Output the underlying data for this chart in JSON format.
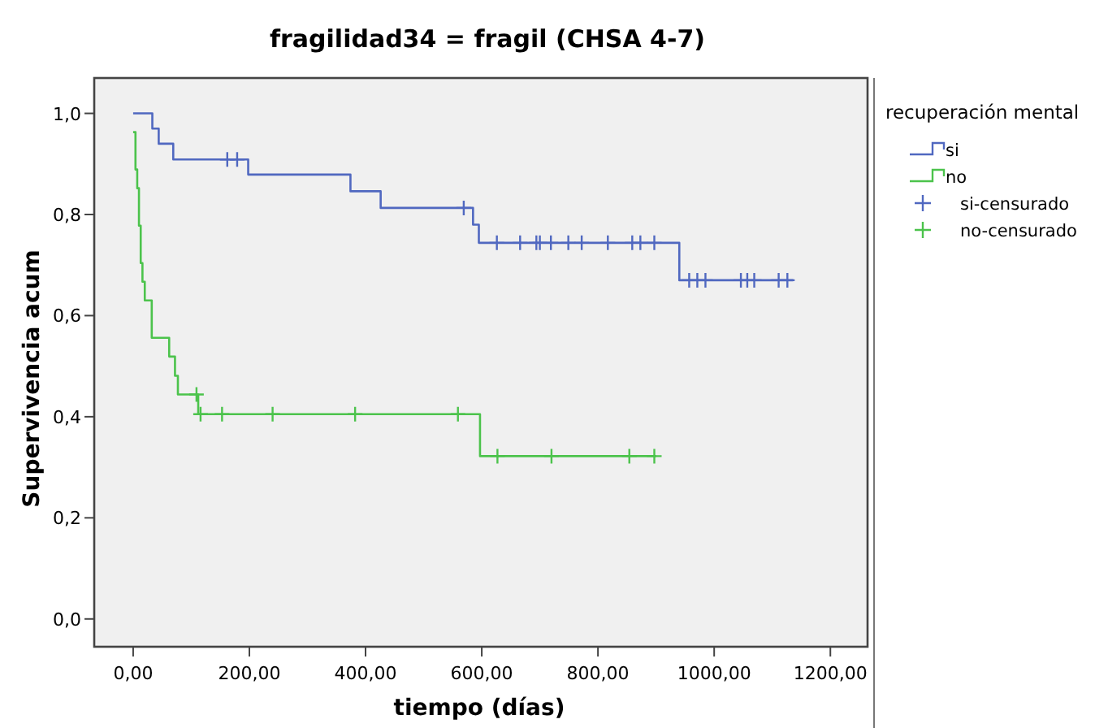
{
  "chart_data": {
    "type": "step",
    "title": "fragilidad34 = fragil (CHSA 4-7)",
    "xlabel": "tiempo (días)",
    "ylabel": "Supervivencia acum",
    "legend_title": "recuperación mental",
    "legend": "right",
    "grid": false,
    "xlim": [
      -67,
      1264
    ],
    "ylim": [
      -0.055,
      1.07
    ],
    "xticks": [
      {
        "value": 0,
        "label": "0,00"
      },
      {
        "value": 200,
        "label": "200,00"
      },
      {
        "value": 400,
        "label": "400,00"
      },
      {
        "value": 600,
        "label": "600,00"
      },
      {
        "value": 800,
        "label": "800,00"
      },
      {
        "value": 1000,
        "label": "1000,00"
      },
      {
        "value": 1200,
        "label": "1200,00"
      }
    ],
    "yticks": [
      {
        "value": 0,
        "label": "0,0"
      },
      {
        "value": 0.2,
        "label": "0,2"
      },
      {
        "value": 0.4,
        "label": "0,4"
      },
      {
        "value": 0.6,
        "label": "0,6"
      },
      {
        "value": 0.8,
        "label": "0,8"
      },
      {
        "value": 1,
        "label": "1,0"
      }
    ],
    "series": [
      {
        "name": "si",
        "color": "#5068c0",
        "x": [
          0,
          33,
          44,
          69,
          198,
          374,
          426,
          585,
          595,
          940,
          1136
        ],
        "values": [
          1,
          0.97,
          0.94,
          0.909,
          0.879,
          0.846,
          0.813,
          0.78,
          0.744,
          0.67,
          0.67
        ]
      },
      {
        "name": "no",
        "color": "#4cc34c",
        "x": [
          0,
          4,
          7,
          10,
          13,
          16,
          20,
          32,
          62,
          72,
          77,
          112,
          597,
          900
        ],
        "values": [
          0.963,
          0.889,
          0.852,
          0.778,
          0.704,
          0.667,
          0.63,
          0.556,
          0.519,
          0.481,
          0.444,
          0.405,
          0.322,
          0.322
        ]
      },
      {
        "name": "si-censurado",
        "type": "scatter",
        "marker": "cross",
        "color": "#5068c0",
        "x": [
          162,
          179,
          569,
          626,
          666,
          694,
          700,
          719,
          749,
          772,
          817,
          859,
          873,
          897,
          957,
          971,
          985,
          1046,
          1057,
          1069,
          1111,
          1126
        ],
        "values": [
          0.909,
          0.909,
          0.813,
          0.744,
          0.744,
          0.744,
          0.744,
          0.744,
          0.744,
          0.744,
          0.744,
          0.744,
          0.744,
          0.744,
          0.67,
          0.67,
          0.67,
          0.67,
          0.67,
          0.67,
          0.67,
          0.67
        ]
      },
      {
        "name": "no-censurado",
        "type": "scatter",
        "marker": "cross",
        "color": "#4cc34c",
        "x": [
          109,
          116,
          153,
          240,
          382,
          559,
          627,
          720,
          854,
          897
        ],
        "values": [
          0.444,
          0.405,
          0.405,
          0.405,
          0.405,
          0.405,
          0.322,
          0.322,
          0.322,
          0.322
        ]
      }
    ]
  }
}
